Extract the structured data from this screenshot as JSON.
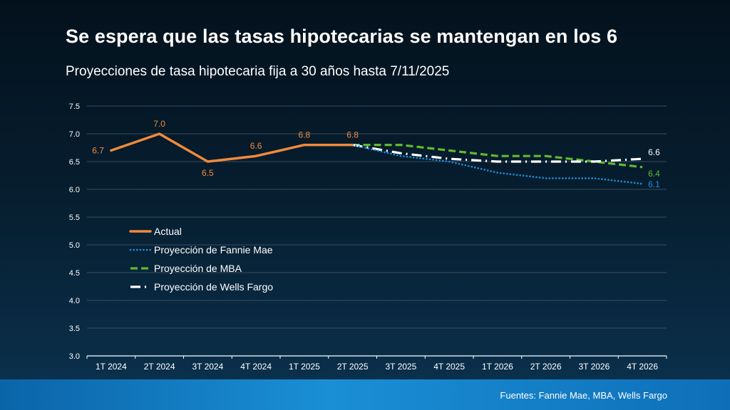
{
  "header": {
    "title": "Se espera que las tasas hipotecarias se mantengan en los 6",
    "subtitle": "Proyecciones de tasa hipotecaria fija a 30 años hasta 7/11/2025"
  },
  "footer": {
    "source": "Fuentes: Fannie Mae, MBA, Wells Fargo"
  },
  "colors": {
    "actual": "#f08a3c",
    "fannie": "#1b8fe0",
    "mba": "#5fba2e",
    "wells": "#ffffff",
    "grid": "#3a4d5d",
    "axis": "#ffffff",
    "tick_text": "#ffffff"
  },
  "chart_data": {
    "type": "line",
    "title": "Se espera que las tasas hipotecarias se mantengan en los 6",
    "subtitle": "Proyecciones de tasa hipotecaria fija a 30 años hasta 7/11/2025",
    "xlabel": "",
    "ylabel": "",
    "ylim": [
      3.0,
      7.5
    ],
    "y_ticks": [
      "3.0",
      "3.5",
      "4.0",
      "4.5",
      "5.0",
      "5.5",
      "6.0",
      "6.5",
      "7.0",
      "7.5"
    ],
    "grid": true,
    "legend_position": "middle-left",
    "categories": [
      "1T 2024",
      "2T 2024",
      "3T 2024",
      "4T 2024",
      "1T 2025",
      "2T 2025",
      "3T 2025",
      "4T 2025",
      "1T 2026",
      "2T 2026",
      "3T 2026",
      "4T 2026"
    ],
    "series": [
      {
        "key": "actual",
        "name": "Actual",
        "style": "solid",
        "values": [
          6.7,
          7.0,
          6.5,
          6.6,
          6.8,
          6.8,
          null,
          null,
          null,
          null,
          null,
          null
        ],
        "labels": [
          "6.7",
          "7.0",
          "6.5",
          "6.6",
          "6.8",
          "6.8",
          null,
          null,
          null,
          null,
          null,
          null
        ]
      },
      {
        "key": "fannie",
        "name": "Proyección de Fannie Mae",
        "style": "dotted",
        "values": [
          null,
          null,
          null,
          null,
          null,
          6.8,
          6.6,
          6.5,
          6.3,
          6.2,
          6.2,
          6.1
        ],
        "labels": [
          null,
          null,
          null,
          null,
          null,
          null,
          null,
          null,
          null,
          null,
          null,
          "6.1"
        ]
      },
      {
        "key": "mba",
        "name": "Proyección de MBA",
        "style": "dashed",
        "values": [
          null,
          null,
          null,
          null,
          null,
          6.8,
          6.8,
          6.7,
          6.6,
          6.6,
          6.5,
          6.4
        ],
        "labels": [
          null,
          null,
          null,
          null,
          null,
          null,
          null,
          null,
          null,
          null,
          null,
          "6.4"
        ]
      },
      {
        "key": "wells",
        "name": "Proyección de Wells Fargo",
        "style": "dashdot",
        "values": [
          null,
          null,
          null,
          null,
          null,
          6.8,
          6.65,
          6.55,
          6.5,
          6.5,
          6.5,
          6.55
        ],
        "labels": [
          null,
          null,
          null,
          null,
          null,
          null,
          null,
          null,
          null,
          null,
          null,
          "6.6"
        ]
      }
    ]
  }
}
